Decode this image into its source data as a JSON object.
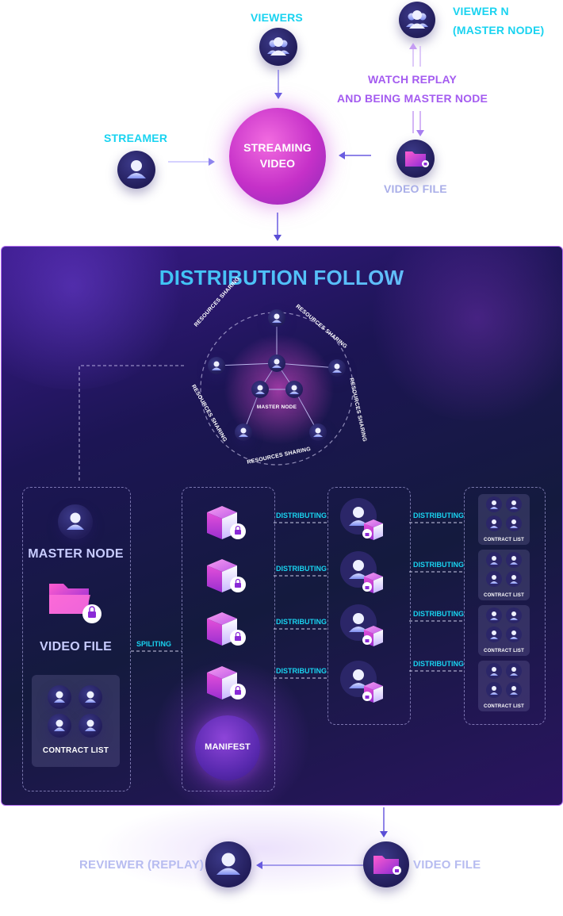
{
  "top": {
    "viewers": "VIEWERS",
    "viewer_n_line1": "VIEWER N",
    "viewer_n_line2": "(MASTER NODE)",
    "watch_line1": "WATCH REPLAY",
    "watch_line2": "AND BEING MASTER NODE",
    "streamer": "STREAMER",
    "streaming_line1": "STREAMING",
    "streaming_line2": "VIDEO",
    "video_file": "VIDEO FILE"
  },
  "distribution": {
    "title": "DISTRIBUTION FOLLOW",
    "resources_sharing": "RESOURCES SHARING",
    "center_master": "MASTER NODE",
    "left_master": "MASTER NODE",
    "left_video": "VIDEO FILE",
    "contract_list": "CONTRACT LIST",
    "spliting": "SPILITING",
    "distributing": "DISTRIBUTING",
    "manifest": "MANIFEST"
  },
  "bottom": {
    "reviewer": "REVIEWER (REPLAY)",
    "video_file": "VIDEO FILE"
  },
  "colors": {
    "cyan": "#19d3f0",
    "violet": "#a45cf0",
    "magenta": "#e04fd8",
    "navy_node": "#2a2468"
  }
}
